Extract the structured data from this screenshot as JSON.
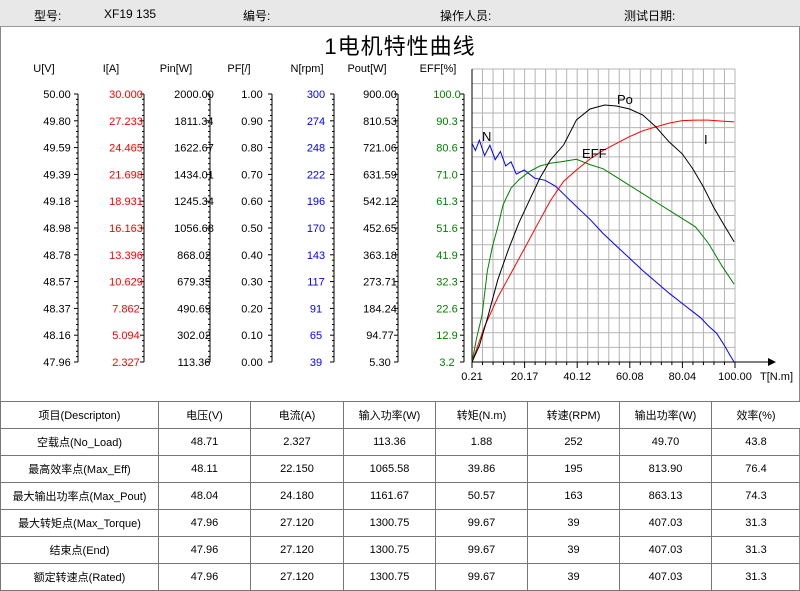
{
  "header": {
    "model_label": "型号:",
    "model_value": "XF19 135",
    "number_label": "编号:",
    "operator_label": "操作人员:",
    "date_label": "测试日期:"
  },
  "chart_data": {
    "type": "line",
    "title": "1电机特性曲线",
    "xlabel": "T[N.m]",
    "xlim": [
      0.21,
      100.0
    ],
    "x_ticks": [
      "0.21",
      "20.17",
      "40.12",
      "60.08",
      "80.04",
      "100.00"
    ],
    "grid": true,
    "axes": [
      {
        "label": "U[V]",
        "color": "#000000",
        "min": 47.96,
        "max": 50.0,
        "ticks": [
          "50.00",
          "49.80",
          "49.59",
          "49.39",
          "49.18",
          "48.98",
          "48.78",
          "48.57",
          "48.37",
          "48.16",
          "47.96"
        ]
      },
      {
        "label": "I[A]",
        "color": "#ff0000",
        "min": 2.327,
        "max": 30.0,
        "ticks": [
          "30.000",
          "27.233",
          "24.465",
          "21.698",
          "18.931",
          "16.163",
          "13.396",
          "10.629",
          "7.862",
          "5.094",
          "2.327"
        ]
      },
      {
        "label": "Pin[W]",
        "color": "#000000",
        "min": 113.36,
        "max": 2000.0,
        "ticks": [
          "2000.00",
          "1811.34",
          "1622.67",
          "1434.01",
          "1245.34",
          "1056.68",
          "868.02",
          "679.35",
          "490.69",
          "302.02",
          "113.36"
        ]
      },
      {
        "label": "PF[/]",
        "color": "#000000",
        "min": 0.0,
        "max": 1.0,
        "ticks": [
          "1.00",
          "0.90",
          "0.80",
          "0.70",
          "0.60",
          "0.50",
          "0.40",
          "0.30",
          "0.20",
          "0.10",
          "0.00"
        ]
      },
      {
        "label": "N[rpm]",
        "color": "#0000ff",
        "min": 39,
        "max": 300,
        "ticks": [
          "300",
          "274",
          "248",
          "222",
          "196",
          "170",
          "143",
          "117",
          "91",
          "65",
          "39"
        ]
      },
      {
        "label": "Pout[W]",
        "color": "#000000",
        "min": 5.3,
        "max": 900.0,
        "ticks": [
          "900.00",
          "810.53",
          "721.06",
          "631.59",
          "542.12",
          "452.65",
          "363.18",
          "273.71",
          "184.24",
          "94.77",
          "5.30"
        ]
      },
      {
        "label": "EFF[%]",
        "color": "#008000",
        "min": 3.2,
        "max": 100.0,
        "ticks": [
          "100.0",
          "90.3",
          "80.6",
          "71.0",
          "61.3",
          "51.6",
          "41.9",
          "32.3",
          "22.6",
          "12.9",
          "3.2"
        ]
      }
    ],
    "series": [
      {
        "name": "N",
        "color": "#0000ff",
        "axis": 4,
        "x": [
          0.21,
          1.5,
          3,
          5,
          7,
          9,
          11,
          13,
          15,
          17,
          20,
          24,
          28,
          32,
          36,
          40,
          45,
          50,
          55,
          60,
          65,
          70,
          75,
          80,
          84,
          87,
          90,
          93,
          96,
          98,
          99.67
        ],
        "y": [
          252,
          245,
          255,
          240,
          250,
          236,
          244,
          230,
          234,
          222,
          226,
          218,
          216,
          210,
          200,
          190,
          178,
          164,
          152,
          140,
          128,
          117,
          106,
          96,
          88,
          82,
          74,
          67,
          55,
          46,
          39
        ]
      },
      {
        "name": "EFF",
        "color": "#008000",
        "axis": 6,
        "x": [
          0.21,
          2,
          4,
          6,
          8,
          10,
          12,
          15,
          18,
          22,
          26,
          30,
          34,
          39.86,
          45,
          50,
          55,
          60,
          65,
          70,
          75,
          80,
          85,
          90,
          95,
          99.67
        ],
        "y": [
          3.2,
          12,
          20,
          36,
          45,
          52,
          60,
          66,
          69,
          72,
          74,
          75,
          75.5,
          76.4,
          74.5,
          73,
          70,
          67,
          64,
          61,
          58,
          55,
          52,
          46,
          38,
          31.3
        ]
      },
      {
        "name": "I",
        "color": "#ff0000",
        "axis": 1,
        "x": [
          0.21,
          5,
          10,
          15,
          20,
          25,
          30,
          35,
          39.86,
          45,
          50,
          55,
          60,
          65,
          70,
          75,
          80,
          85,
          90,
          95,
          99.67
        ],
        "y": [
          2.327,
          6,
          9,
          11.5,
          14,
          16.5,
          19,
          21,
          22.15,
          23.3,
          24.18,
          24.9,
          25.6,
          26.2,
          26.6,
          27.0,
          27.25,
          27.3,
          27.3,
          27.2,
          27.12
        ]
      },
      {
        "name": "Po",
        "color": "#000000",
        "axis": 5,
        "x": [
          0.21,
          3,
          6,
          10,
          14,
          18,
          22,
          26,
          30,
          35,
          39.86,
          45,
          50.57,
          55,
          60,
          65,
          70,
          75,
          80,
          84,
          88,
          92,
          96,
          99.67
        ],
        "y": [
          5.3,
          60,
          150,
          280,
          380,
          470,
          545,
          620,
          680,
          730,
          813.9,
          850,
          863.13,
          860,
          850,
          830,
          790,
          740,
          700,
          650,
          590,
          520,
          460,
          407.03
        ]
      }
    ],
    "series_label_text": [
      "N",
      "EFF",
      "I",
      "Po"
    ]
  },
  "table": {
    "headers": [
      "项目(Descripton)",
      "电压(V)",
      "电流(A)",
      "输入功率(W)",
      "转矩(N.m)",
      "转速(RPM)",
      "输出功率(W)",
      "效率(%)"
    ],
    "rows": [
      [
        "空载点(No_Load)",
        "48.71",
        "2.327",
        "113.36",
        "1.88",
        "252",
        "49.70",
        "43.8"
      ],
      [
        "最高效率点(Max_Eff)",
        "48.11",
        "22.150",
        "1065.58",
        "39.86",
        "195",
        "813.90",
        "76.4"
      ],
      [
        "最大输出功率点(Max_Pout)",
        "48.04",
        "24.180",
        "1161.67",
        "50.57",
        "163",
        "863.13",
        "74.3"
      ],
      [
        "最大转矩点(Max_Torque)",
        "47.96",
        "27.120",
        "1300.75",
        "99.67",
        "39",
        "407.03",
        "31.3"
      ],
      [
        "结束点(End)",
        "47.96",
        "27.120",
        "1300.75",
        "99.67",
        "39",
        "407.03",
        "31.3"
      ],
      [
        "额定转速点(Rated)",
        "47.96",
        "27.120",
        "1300.75",
        "99.67",
        "39",
        "407.03",
        "31.3"
      ]
    ]
  }
}
